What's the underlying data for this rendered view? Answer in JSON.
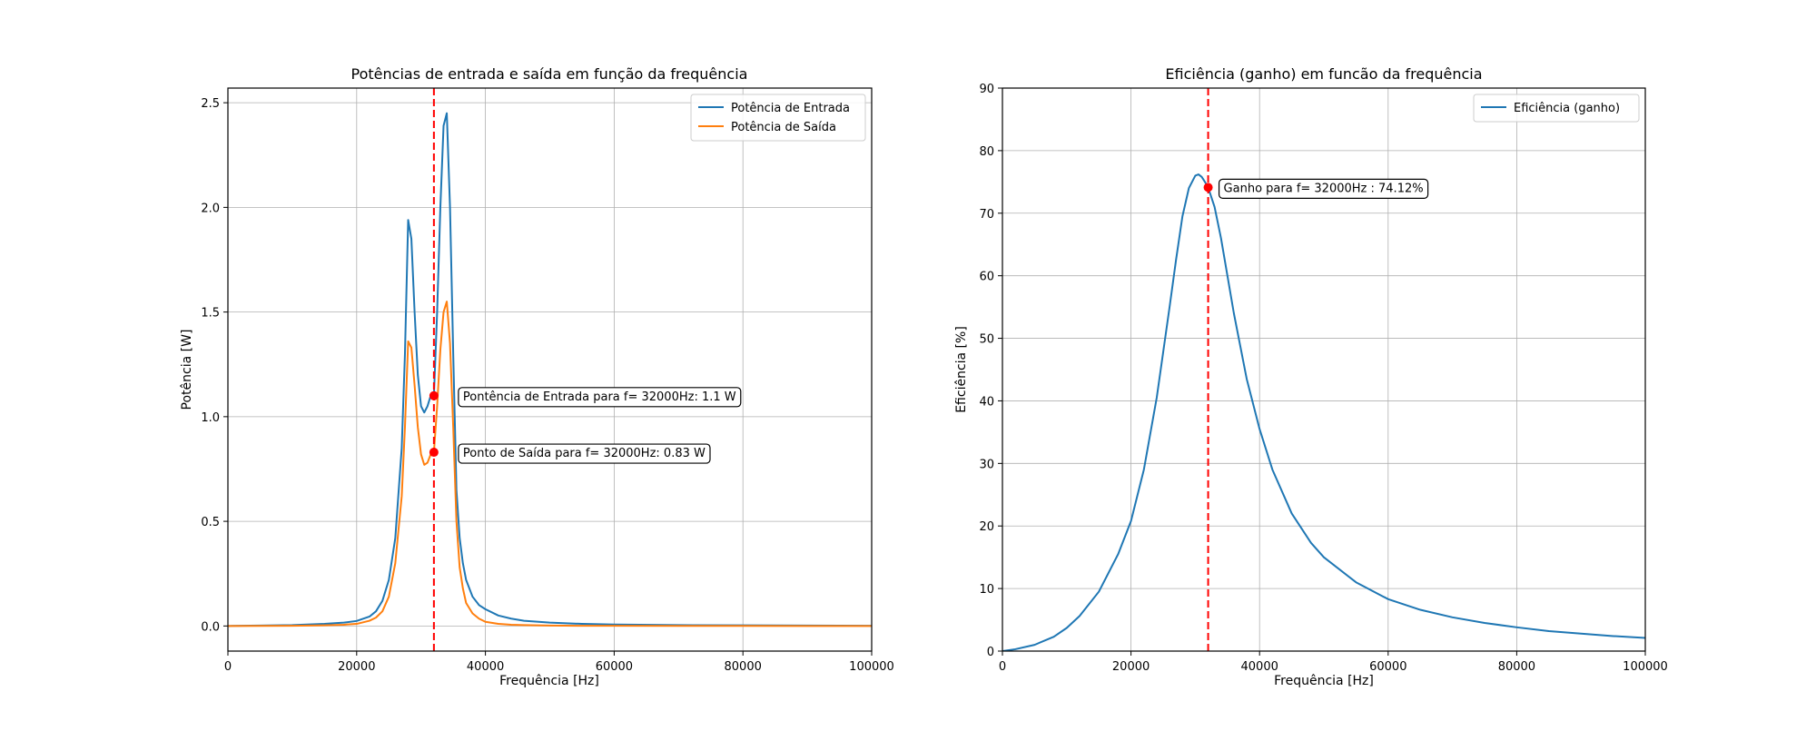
{
  "chart_data": [
    {
      "type": "line",
      "title": "Potências de entrada e saída em função da frequência",
      "xlabel": "Frequência [Hz]",
      "ylabel": "Potência [W]",
      "xlim": [
        0,
        100000
      ],
      "ylim": [
        -0.12,
        2.57
      ],
      "xticks": [
        0,
        20000,
        40000,
        60000,
        80000,
        100000
      ],
      "yticks": [
        0.0,
        0.5,
        1.0,
        1.5,
        2.0,
        2.5
      ],
      "xtick_labels": [
        "0",
        "20000",
        "40000",
        "60000",
        "80000",
        "100000"
      ],
      "ytick_labels": [
        "0.0",
        "0.5",
        "1.0",
        "1.5",
        "2.0",
        "2.5"
      ],
      "grid": true,
      "legend_position": "top-right",
      "vline": {
        "x": 32000,
        "color": "#ff0000",
        "style": "dashed"
      },
      "series": [
        {
          "name": "Potência de Entrada",
          "color": "#1f77b4",
          "x": [
            0,
            5000,
            10000,
            15000,
            18000,
            20000,
            22000,
            23000,
            24000,
            25000,
            26000,
            27000,
            27500,
            28000,
            28500,
            29000,
            29500,
            30000,
            30500,
            31000,
            31500,
            32000,
            32500,
            33000,
            33500,
            34000,
            34500,
            35000,
            35500,
            36000,
            36500,
            37000,
            38000,
            39000,
            40000,
            42000,
            44000,
            46000,
            50000,
            55000,
            60000,
            70000,
            80000,
            90000,
            100000
          ],
          "y": [
            0.0,
            0.002,
            0.004,
            0.01,
            0.016,
            0.024,
            0.045,
            0.07,
            0.12,
            0.22,
            0.42,
            0.85,
            1.3,
            1.94,
            1.85,
            1.5,
            1.2,
            1.05,
            1.02,
            1.05,
            1.1,
            1.1,
            1.5,
            2.0,
            2.39,
            2.45,
            2.0,
            1.3,
            0.65,
            0.42,
            0.3,
            0.22,
            0.14,
            0.1,
            0.08,
            0.05,
            0.035,
            0.025,
            0.016,
            0.01,
            0.007,
            0.004,
            0.003,
            0.002,
            0.001
          ]
        },
        {
          "name": "Potência de Saída",
          "color": "#ff7f0e",
          "x": [
            0,
            5000,
            10000,
            15000,
            18000,
            20000,
            22000,
            23000,
            24000,
            25000,
            26000,
            27000,
            27500,
            28000,
            28500,
            29000,
            29500,
            30000,
            30500,
            31000,
            31500,
            32000,
            32500,
            33000,
            33500,
            34000,
            34500,
            35000,
            35500,
            36000,
            36500,
            37000,
            38000,
            39000,
            40000,
            42000,
            44000,
            46000,
            50000,
            55000,
            60000,
            70000,
            80000,
            90000,
            100000
          ],
          "y": [
            0.0,
            0.0005,
            0.001,
            0.003,
            0.006,
            0.01,
            0.025,
            0.04,
            0.07,
            0.14,
            0.3,
            0.62,
            0.95,
            1.36,
            1.33,
            1.15,
            0.95,
            0.82,
            0.77,
            0.78,
            0.82,
            0.83,
            1.05,
            1.32,
            1.5,
            1.55,
            1.35,
            0.95,
            0.5,
            0.28,
            0.18,
            0.11,
            0.06,
            0.035,
            0.02,
            0.01,
            0.006,
            0.004,
            0.002,
            0.001,
            0.0007,
            0.0004,
            0.0002,
            0.0001,
            0.0001
          ]
        }
      ],
      "annotations": [
        {
          "text": "Pontência de Entrada para f= 32000Hz: 1.1 W",
          "x": 32000,
          "y": 1.1,
          "marker_color": "#ff0000"
        },
        {
          "text": "Ponto de Saída para f= 32000Hz: 0.83 W",
          "x": 32000,
          "y": 0.83,
          "marker_color": "#ff0000"
        }
      ]
    },
    {
      "type": "line",
      "title": "Eficiência (ganho) em funcão da frequência",
      "xlabel": "Frequência [Hz]",
      "ylabel": "Eficiência [%]",
      "xlim": [
        0,
        100000
      ],
      "ylim": [
        0,
        90
      ],
      "xticks": [
        0,
        20000,
        40000,
        60000,
        80000,
        100000
      ],
      "yticks": [
        0,
        10,
        20,
        30,
        40,
        50,
        60,
        70,
        80,
        90
      ],
      "xtick_labels": [
        "0",
        "20000",
        "40000",
        "60000",
        "80000",
        "100000"
      ],
      "ytick_labels": [
        "0",
        "10",
        "20",
        "30",
        "40",
        "50",
        "60",
        "70",
        "80",
        "90"
      ],
      "grid": true,
      "legend_position": "top-right",
      "vline": {
        "x": 32000,
        "color": "#ff0000",
        "style": "dashed"
      },
      "series": [
        {
          "name": "Eficiência (ganho)",
          "color": "#1f77b4",
          "x": [
            0,
            2000,
            5000,
            8000,
            10000,
            12000,
            15000,
            18000,
            20000,
            22000,
            24000,
            26000,
            27000,
            28000,
            29000,
            30000,
            30500,
            31000,
            31500,
            32000,
            33000,
            34000,
            35000,
            36000,
            38000,
            40000,
            42000,
            45000,
            48000,
            50000,
            55000,
            60000,
            65000,
            70000,
            75000,
            80000,
            85000,
            90000,
            95000,
            100000
          ],
          "y": [
            0,
            0.3,
            1.0,
            2.3,
            3.7,
            5.6,
            9.5,
            15.5,
            20.8,
            29.0,
            40.5,
            55.0,
            62.5,
            69.5,
            74.0,
            76.0,
            76.2,
            75.8,
            75.0,
            74.12,
            71.0,
            66.0,
            60.0,
            54.0,
            43.5,
            35.5,
            29.0,
            22.0,
            17.3,
            15.0,
            11.0,
            8.3,
            6.6,
            5.4,
            4.5,
            3.8,
            3.2,
            2.8,
            2.4,
            2.1
          ]
        }
      ],
      "annotations": [
        {
          "text": "Ganho para f= 32000Hz : 74.12%",
          "x": 32000,
          "y": 74.12,
          "marker_color": "#ff0000"
        }
      ]
    }
  ]
}
